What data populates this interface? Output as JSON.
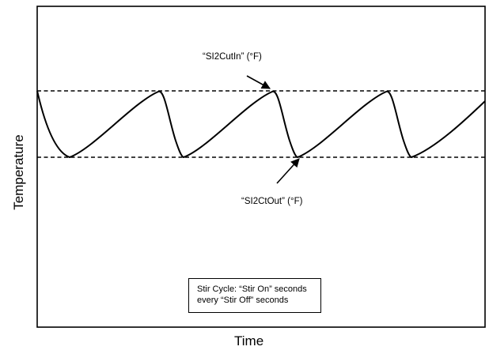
{
  "axes": {
    "x_label": "Time",
    "y_label": "Temperature"
  },
  "annotations": {
    "cut_in": "“SI2CutIn” (°F)",
    "cut_out": "“SI2CtOut” (°F)"
  },
  "stir_box": {
    "line1": "Stir Cycle: “Stir On” seconds",
    "line2": "every “Stir Off” seconds"
  },
  "colors": {
    "line": "#000000",
    "background": "#ffffff"
  }
}
